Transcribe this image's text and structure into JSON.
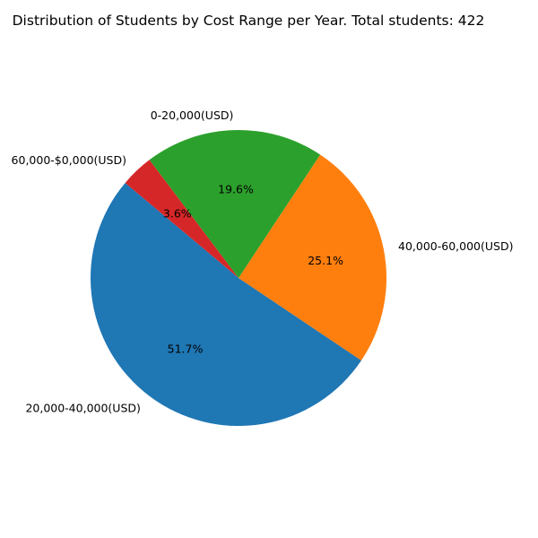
{
  "chart_data": {
    "type": "pie",
    "title": "Distribution of Students by Cost Range per Year. Total students: 422",
    "start_angle_deg": 140,
    "direction": "counterclockwise",
    "slices": [
      {
        "label": "20,000-40,000(USD)",
        "value": 51.7,
        "pct_label": "51.7%",
        "color": "#1f77b4"
      },
      {
        "label": "40,000-60,000(USD)",
        "value": 25.1,
        "pct_label": "25.1%",
        "color": "#ff7f0e"
      },
      {
        "label": "0-20,000(USD)",
        "value": 19.6,
        "pct_label": "19.6%",
        "color": "#2ca02c"
      },
      {
        "label": "60,000-$0,000(USD)",
        "value": 3.6,
        "pct_label": "3.6%",
        "color": "#d62728"
      }
    ]
  }
}
